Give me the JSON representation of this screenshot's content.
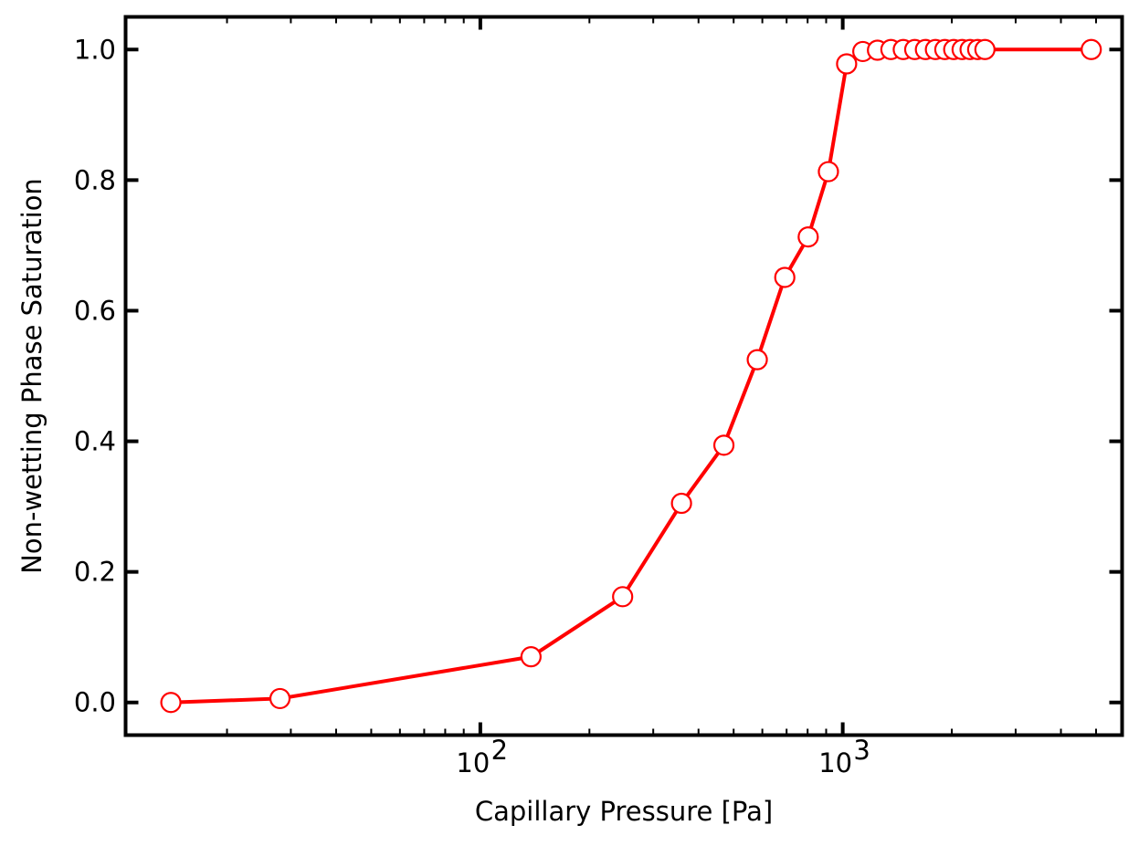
{
  "chart_data": {
    "type": "line",
    "title": "",
    "xlabel": "Capillary Pressure [Pa]",
    "ylabel": "Non-wetting Phase Saturation",
    "x_scale": "log",
    "xlim": [
      10.5,
      5900
    ],
    "ylim": [
      -0.05,
      1.05
    ],
    "x_ticks": [
      {
        "value": 100,
        "base": "10",
        "exp": "2"
      },
      {
        "value": 1000,
        "base": "10",
        "exp": "3"
      }
    ],
    "y_ticks": [
      "0.0",
      "0.2",
      "0.4",
      "0.6",
      "0.8",
      "1.0"
    ],
    "grid": false,
    "legend": "none",
    "series": [
      {
        "color": "#ff0000",
        "marker": "open-circle",
        "points": [
          {
            "x": 14,
            "y": 0.0
          },
          {
            "x": 28,
            "y": 0.006
          },
          {
            "x": 138,
            "y": 0.07
          },
          {
            "x": 247,
            "y": 0.162
          },
          {
            "x": 359,
            "y": 0.305
          },
          {
            "x": 470,
            "y": 0.394
          },
          {
            "x": 581,
            "y": 0.525
          },
          {
            "x": 692,
            "y": 0.651
          },
          {
            "x": 803,
            "y": 0.713
          },
          {
            "x": 913,
            "y": 0.813
          },
          {
            "x": 1025,
            "y": 0.978
          },
          {
            "x": 1136,
            "y": 0.997
          },
          {
            "x": 1247,
            "y": 0.999
          },
          {
            "x": 1358,
            "y": 1.0
          },
          {
            "x": 1469,
            "y": 1.0
          },
          {
            "x": 1580,
            "y": 1.0
          },
          {
            "x": 1691,
            "y": 1.0
          },
          {
            "x": 1802,
            "y": 1.0
          },
          {
            "x": 1913,
            "y": 1.0
          },
          {
            "x": 2024,
            "y": 1.0
          },
          {
            "x": 2135,
            "y": 1.0
          },
          {
            "x": 2246,
            "y": 1.0
          },
          {
            "x": 2357,
            "y": 1.0
          },
          {
            "x": 2468,
            "y": 1.0
          },
          {
            "x": 4850,
            "y": 1.0
          }
        ]
      }
    ]
  }
}
